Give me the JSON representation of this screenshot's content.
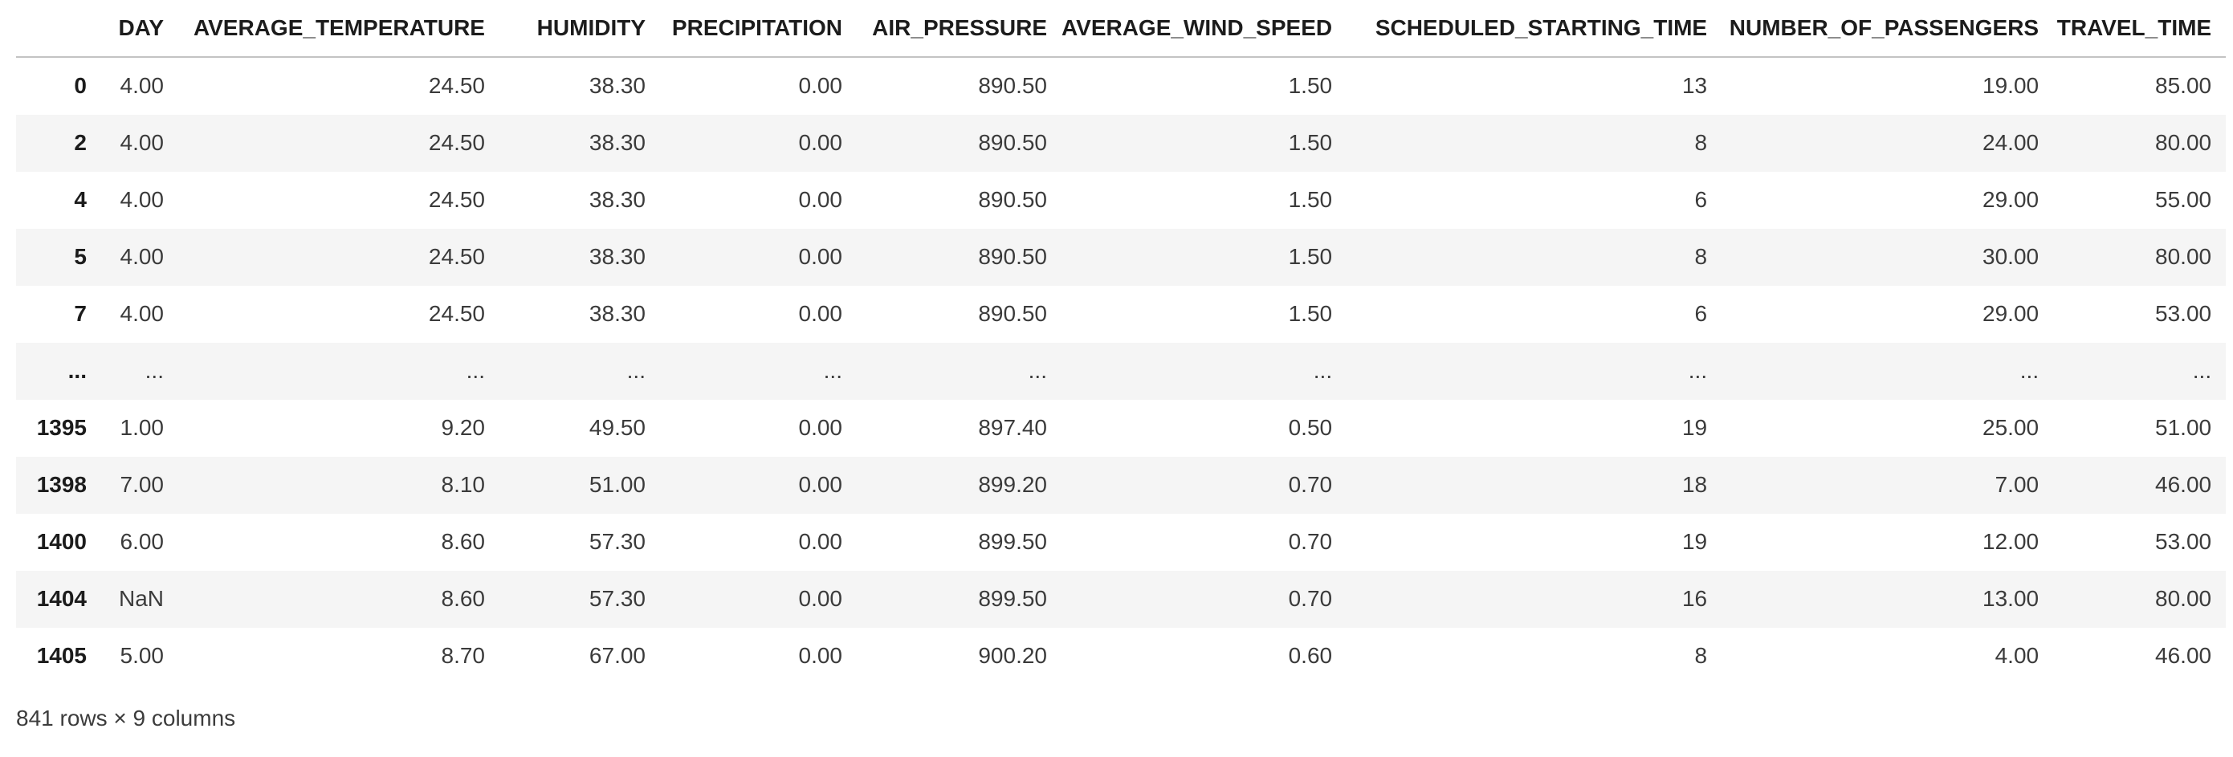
{
  "table": {
    "index_header": "",
    "columns": [
      "DAY",
      "AVERAGE_TEMPERATURE",
      "HUMIDITY",
      "PRECIPITATION",
      "AIR_PRESSURE",
      "AVERAGE_WIND_SPEED",
      "SCHEDULED_STARTING_TIME",
      "NUMBER_OF_PASSENGERS",
      "TRAVEL_TIME"
    ],
    "rows": [
      {
        "index": "0",
        "cells": [
          "4.00",
          "24.50",
          "38.30",
          "0.00",
          "890.50",
          "1.50",
          "13",
          "19.00",
          "85.00"
        ]
      },
      {
        "index": "2",
        "cells": [
          "4.00",
          "24.50",
          "38.30",
          "0.00",
          "890.50",
          "1.50",
          "8",
          "24.00",
          "80.00"
        ]
      },
      {
        "index": "4",
        "cells": [
          "4.00",
          "24.50",
          "38.30",
          "0.00",
          "890.50",
          "1.50",
          "6",
          "29.00",
          "55.00"
        ]
      },
      {
        "index": "5",
        "cells": [
          "4.00",
          "24.50",
          "38.30",
          "0.00",
          "890.50",
          "1.50",
          "8",
          "30.00",
          "80.00"
        ]
      },
      {
        "index": "7",
        "cells": [
          "4.00",
          "24.50",
          "38.30",
          "0.00",
          "890.50",
          "1.50",
          "6",
          "29.00",
          "53.00"
        ]
      },
      {
        "index": "...",
        "cells": [
          "...",
          "...",
          "...",
          "...",
          "...",
          "...",
          "...",
          "...",
          "..."
        ]
      },
      {
        "index": "1395",
        "cells": [
          "1.00",
          "9.20",
          "49.50",
          "0.00",
          "897.40",
          "0.50",
          "19",
          "25.00",
          "51.00"
        ]
      },
      {
        "index": "1398",
        "cells": [
          "7.00",
          "8.10",
          "51.00",
          "0.00",
          "899.20",
          "0.70",
          "18",
          "7.00",
          "46.00"
        ]
      },
      {
        "index": "1400",
        "cells": [
          "6.00",
          "8.60",
          "57.30",
          "0.00",
          "899.50",
          "0.70",
          "19",
          "12.00",
          "53.00"
        ]
      },
      {
        "index": "1404",
        "cells": [
          "NaN",
          "8.60",
          "57.30",
          "0.00",
          "899.50",
          "0.70",
          "16",
          "13.00",
          "80.00"
        ]
      },
      {
        "index": "1405",
        "cells": [
          "5.00",
          "8.70",
          "67.00",
          "0.00",
          "900.20",
          "0.60",
          "8",
          "4.00",
          "46.00"
        ]
      }
    ]
  },
  "footer": {
    "summary": "841 rows × 9 columns"
  },
  "colors": {
    "stripe": "#f5f5f5",
    "header_border": "#c3c3c3",
    "header_text": "#1c1c1c",
    "cell_text": "#3b3b3b",
    "background": "#ffffff"
  }
}
